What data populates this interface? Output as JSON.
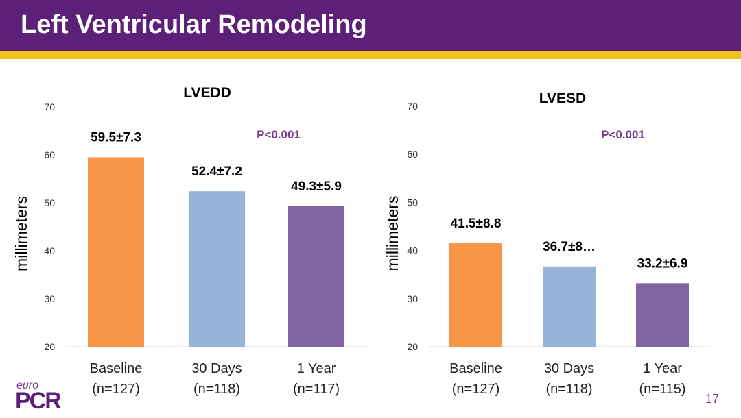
{
  "title": "Left Ventricular Remodeling",
  "page_number": "17",
  "logo": {
    "euro": "euro",
    "pcr": "PCR"
  },
  "colors": {
    "header": "#5d2079",
    "stripe": "#f3c21b",
    "pvalue": "#7a3b8f"
  },
  "chart_data": [
    {
      "type": "bar",
      "title": "LVEDD",
      "ylabel": "millimeters",
      "ylim": [
        20,
        70
      ],
      "yticks": [
        20,
        30,
        40,
        50,
        60,
        70
      ],
      "categories": [
        "Baseline",
        "30 Days",
        "1 Year"
      ],
      "sublabels": [
        "(n=127)",
        "(n=118)",
        "(n=117)"
      ],
      "values": [
        59.5,
        52.4,
        49.3
      ],
      "value_labels": [
        "59.5±7.3",
        "52.4±7.2",
        "49.3±5.9"
      ],
      "bar_colors": [
        "#f79646",
        "#95b3d7",
        "#8064a2"
      ],
      "annotation": "P<0.001",
      "grid": false
    },
    {
      "type": "bar",
      "title": "LVESD",
      "ylabel": "millimeters",
      "ylim": [
        20,
        70
      ],
      "yticks": [
        20,
        30,
        40,
        50,
        60,
        70
      ],
      "categories": [
        "Baseline",
        "30 Days",
        "1 Year"
      ],
      "sublabels": [
        "(n=127)",
        "(n=118)",
        "(n=115)"
      ],
      "values": [
        41.5,
        36.7,
        33.2
      ],
      "value_labels": [
        "41.5±8.8",
        "36.7±8…",
        "33.2±6.9"
      ],
      "bar_colors": [
        "#f79646",
        "#95b3d7",
        "#8064a2"
      ],
      "annotation": "P<0.001",
      "grid": false
    }
  ]
}
